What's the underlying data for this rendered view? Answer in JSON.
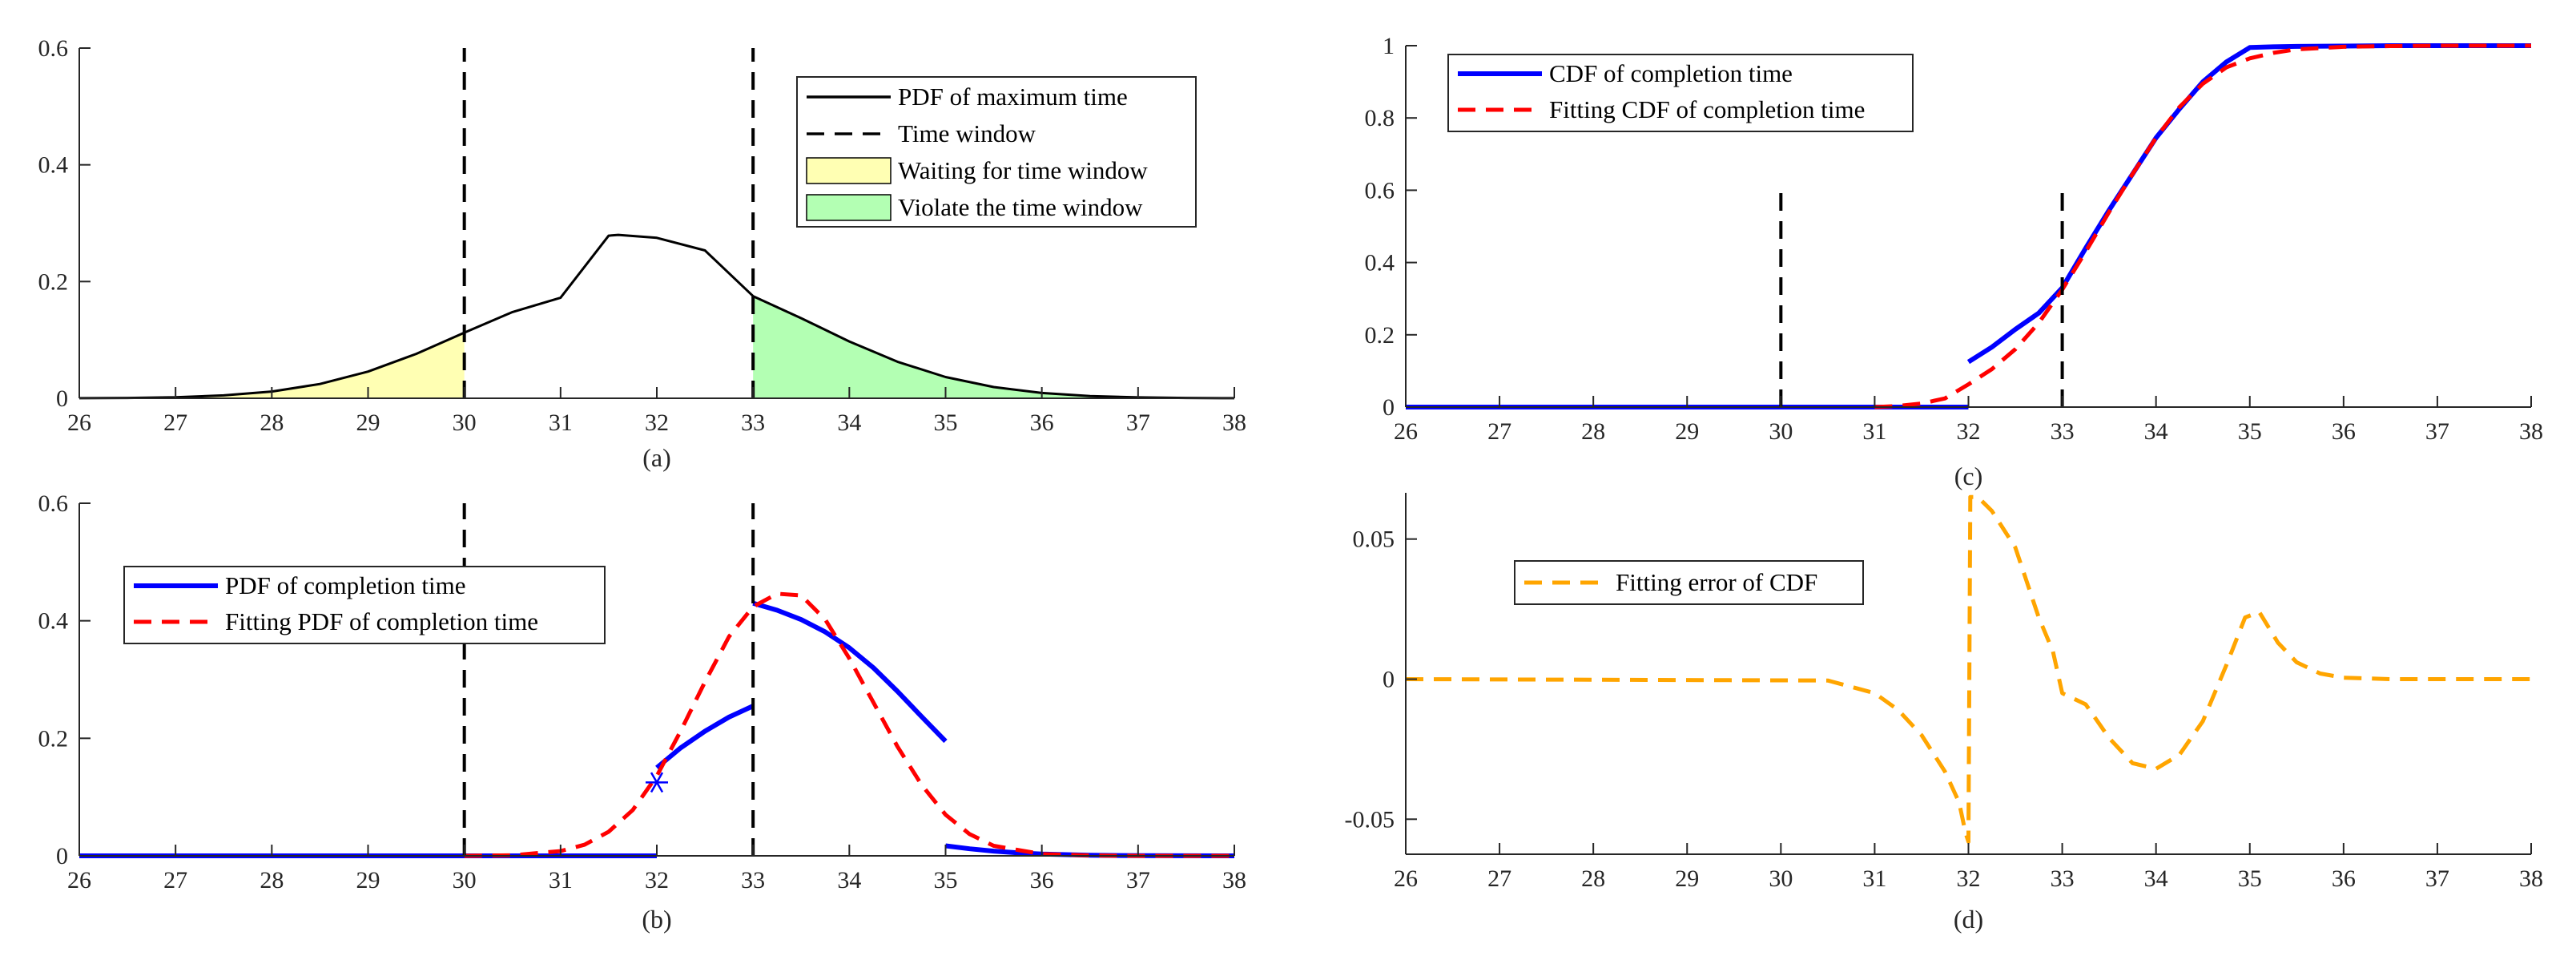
{
  "chart_data": [
    {
      "id": "a",
      "type": "line",
      "caption": "(a)",
      "xlim": [
        26,
        38
      ],
      "ylim": [
        0,
        0.6
      ],
      "xticks": [
        "26",
        "27",
        "28",
        "29",
        "30",
        "31",
        "32",
        "33",
        "34",
        "35",
        "36",
        "37",
        "38"
      ],
      "yticks": [
        "0",
        "0.2",
        "0.4",
        "0.6"
      ],
      "series": [
        {
          "name": "PDF of maximum time",
          "color": "#000000",
          "style": "solid",
          "x": [
            26,
            26.5,
            27,
            27.5,
            28,
            28.5,
            29,
            29.5,
            30,
            30.5,
            31,
            31.5,
            31.6,
            32,
            32.5,
            33,
            33.5,
            34,
            34.5,
            35,
            35.5,
            36,
            36.5,
            37,
            37.5,
            38
          ],
          "y": [
            0.0002,
            0.0006,
            0.0018,
            0.0049,
            0.0116,
            0.0244,
            0.0457,
            0.0761,
            0.1125,
            0.1477,
            0.1722,
            0.2786,
            0.28,
            0.2749,
            0.2533,
            0.1749,
            0.1371,
            0.0974,
            0.0626,
            0.0364,
            0.0192,
            0.0091,
            0.0039,
            0.0015,
            0.0005,
            0.0002
          ]
        }
      ],
      "vlines": [
        {
          "name": "Time window",
          "x": 30,
          "ylim": [
            0,
            0.6
          ],
          "color": "#000000",
          "style": "dashed"
        },
        {
          "name": "Time window",
          "x": 33,
          "ylim": [
            0,
            0.6
          ],
          "color": "#000000",
          "style": "dashed"
        }
      ],
      "fills": [
        {
          "name": "Waiting for time window",
          "x_range": [
            26,
            30
          ],
          "color": "#ffffb3"
        },
        {
          "name": "Violate the time window",
          "x_range": [
            33,
            38
          ],
          "color": "#b3ffb3"
        }
      ],
      "legend": {
        "position": "top-right",
        "entries": [
          {
            "label": "PDF of maximum time",
            "kind": "line",
            "color": "#000000",
            "style": "solid"
          },
          {
            "label": "Time window",
            "kind": "line",
            "color": "#000000",
            "style": "dashed"
          },
          {
            "label": "Waiting for time window",
            "kind": "patch",
            "color": "#ffffb3"
          },
          {
            "label": "Violate the time window",
            "kind": "patch",
            "color": "#b3ffb3"
          }
        ]
      }
    },
    {
      "id": "b",
      "type": "line",
      "caption": "(b)",
      "xlim": [
        26,
        38
      ],
      "ylim": [
        0,
        0.6
      ],
      "xticks": [
        "26",
        "27",
        "28",
        "29",
        "30",
        "31",
        "32",
        "33",
        "34",
        "35",
        "36",
        "37",
        "38"
      ],
      "yticks": [
        "0",
        "0.2",
        "0.4",
        "0.6"
      ],
      "series": [
        {
          "name": "PDF of completion time",
          "color": "#0000ff",
          "style": "solid",
          "segments": [
            {
              "x": [
                26,
                32
              ],
              "y": [
                0,
                0
              ]
            },
            {
              "x": [
                32,
                32.25,
                32.5,
                32.75,
                33
              ],
              "y": [
                0.15,
                0.184,
                0.212,
                0.236,
                0.255
              ]
            },
            {
              "x": [
                33,
                33.25,
                33.5,
                33.75,
                34,
                34.25,
                34.5,
                34.75,
                35
              ],
              "y": [
                0.43,
                0.418,
                0.402,
                0.381,
                0.354,
                0.32,
                0.28,
                0.237,
                0.195
              ]
            },
            {
              "x": [
                35,
                35.25,
                35.5,
                35.75,
                36,
                36.5,
                37,
                38
              ],
              "y": [
                0.017,
                0.012,
                0.008,
                0.005,
                0.003,
                0.001,
                0.0003,
                0
              ]
            }
          ]
        },
        {
          "name": "Fitting PDF of completion time",
          "color": "#ff0000",
          "style": "dashed",
          "x": [
            30,
            30.5,
            31,
            31.25,
            31.5,
            31.75,
            32,
            32.25,
            32.5,
            32.75,
            33,
            33.25,
            33.5,
            33.75,
            34,
            34.25,
            34.5,
            34.75,
            35,
            35.25,
            35.5,
            36,
            36.5,
            37,
            38
          ],
          "y": [
            0,
            0.001,
            0.008,
            0.019,
            0.041,
            0.078,
            0.136,
            0.213,
            0.296,
            0.373,
            0.424,
            0.446,
            0.443,
            0.402,
            0.336,
            0.261,
            0.186,
            0.121,
            0.07,
            0.037,
            0.017,
            0.003,
            0.0005,
            0,
            0
          ]
        }
      ],
      "markers": [
        {
          "x": 32,
          "y": 0.125,
          "symbol": "*",
          "color": "#0000ff"
        }
      ],
      "vlines": [
        {
          "x": 30,
          "ylim": [
            0,
            0.6
          ],
          "color": "#000000",
          "style": "dashed"
        },
        {
          "x": 33,
          "ylim": [
            0,
            0.6
          ],
          "color": "#000000",
          "style": "dashed"
        }
      ],
      "legend": {
        "position": "upper-left",
        "entries": [
          {
            "label": "PDF of completion time",
            "kind": "line",
            "color": "#0000ff",
            "style": "solid"
          },
          {
            "label": "Fitting PDF of completion time",
            "kind": "line",
            "color": "#ff0000",
            "style": "dashed"
          }
        ]
      }
    },
    {
      "id": "c",
      "type": "line",
      "caption": "(c)",
      "xlim": [
        26,
        38
      ],
      "ylim": [
        0,
        1
      ],
      "xticks": [
        "26",
        "27",
        "28",
        "29",
        "30",
        "31",
        "32",
        "33",
        "34",
        "35",
        "36",
        "37",
        "38"
      ],
      "yticks": [
        "0",
        "0.2",
        "0.4",
        "0.6",
        "0.8",
        "1"
      ],
      "series": [
        {
          "name": "CDF of completion time",
          "color": "#0000ff",
          "style": "solid",
          "segments": [
            {
              "x": [
                26,
                32
              ],
              "y": [
                0,
                0
              ]
            },
            {
              "x": [
                32,
                32.25,
                32.5,
                32.75,
                33,
                33.25,
                33.5,
                33.75,
                34,
                34.25,
                34.5,
                34.75,
                35,
                35.25,
                35.5,
                36,
                36.5,
                37,
                38
              ],
              "y": [
                0.125,
                0.166,
                0.215,
                0.26,
                0.33,
                0.44,
                0.545,
                0.645,
                0.745,
                0.825,
                0.9,
                0.955,
                0.995,
                0.997,
                0.998,
                0.999,
                1,
                1,
                1
              ]
            }
          ]
        },
        {
          "name": "Fitting CDF of completion time",
          "color": "#ff0000",
          "style": "dashed",
          "x": [
            31,
            31.25,
            31.5,
            31.75,
            32,
            32.25,
            32.5,
            32.75,
            33,
            33.25,
            33.5,
            33.75,
            34,
            34.25,
            34.5,
            34.75,
            35,
            35.25,
            35.5,
            36,
            36.5,
            37,
            38
          ],
          "y": [
            0,
            0.003,
            0.01,
            0.024,
            0.063,
            0.105,
            0.16,
            0.233,
            0.325,
            0.43,
            0.54,
            0.645,
            0.745,
            0.83,
            0.895,
            0.94,
            0.965,
            0.98,
            0.99,
            0.997,
            0.999,
            1,
            1
          ]
        }
      ],
      "vlines": [
        {
          "x": 30,
          "ylim": [
            0,
            0.6
          ],
          "color": "#000000",
          "style": "dashed"
        },
        {
          "x": 33,
          "ylim": [
            0,
            0.6
          ],
          "color": "#000000",
          "style": "dashed"
        }
      ],
      "legend": {
        "position": "upper-left",
        "entries": [
          {
            "label": "CDF of completion time",
            "kind": "line",
            "color": "#0000ff",
            "style": "solid"
          },
          {
            "label": "Fitting CDF of completion time",
            "kind": "line",
            "color": "#ff0000",
            "style": "dashed"
          }
        ]
      }
    },
    {
      "id": "d",
      "type": "line",
      "caption": "(d)",
      "xlim": [
        26,
        38
      ],
      "ylim": [
        -0.0625,
        0.0665
      ],
      "xticks": [
        "26",
        "27",
        "28",
        "29",
        "30",
        "31",
        "32",
        "33",
        "34",
        "35",
        "36",
        "37",
        "38"
      ],
      "yticks": [
        "-0.05",
        "0",
        "0.05"
      ],
      "ytick_values": [
        -0.05,
        0,
        0.05
      ],
      "series": [
        {
          "name": "Fitting error of CDF",
          "color": "#ffa500",
          "style": "dashed",
          "x": [
            26,
            30.5,
            31,
            31.25,
            31.5,
            31.75,
            31.9,
            31.97,
            32,
            32.02,
            32.1,
            32.25,
            32.5,
            32.75,
            32.9,
            33,
            33.25,
            33.5,
            33.75,
            34,
            34.25,
            34.5,
            34.75,
            34.95,
            35.1,
            35.3,
            35.5,
            35.75,
            36,
            36.5,
            38
          ],
          "y": [
            0,
            -0.0005,
            -0.005,
            -0.011,
            -0.02,
            -0.033,
            -0.044,
            -0.055,
            -0.058,
            0.065,
            0.065,
            0.06,
            0.047,
            0.022,
            0.01,
            -0.005,
            -0.009,
            -0.021,
            -0.03,
            -0.032,
            -0.027,
            -0.015,
            0.005,
            0.022,
            0.024,
            0.013,
            0.006,
            0.002,
            0.0005,
            0,
            0
          ]
        }
      ],
      "legend": {
        "position": "upper-left",
        "entries": [
          {
            "label": "Fitting error of CDF",
            "kind": "line",
            "color": "#ffa500",
            "style": "dashed"
          }
        ]
      }
    }
  ]
}
